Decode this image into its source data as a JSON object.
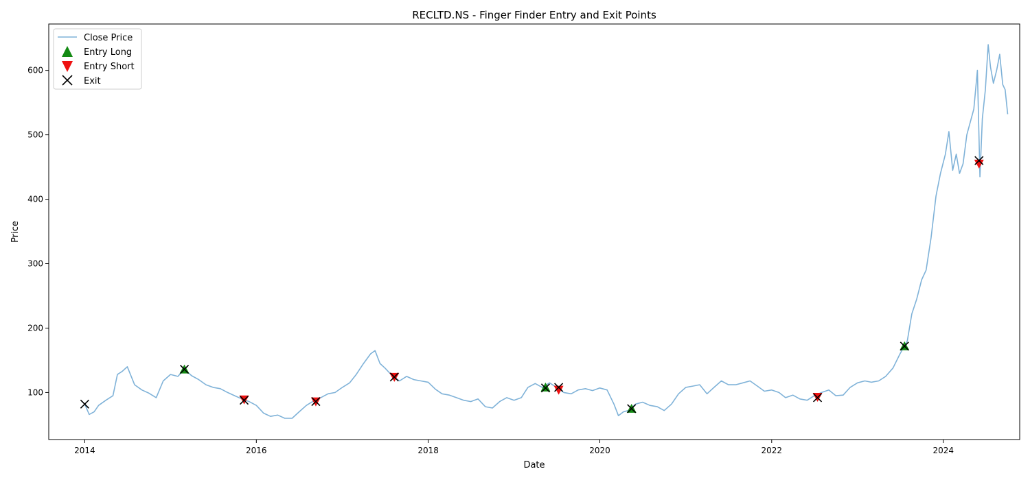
{
  "chart_data": {
    "type": "line",
    "title": "RECLTD.NS - Finger Finder Entry and Exit Points",
    "xlabel": "Date",
    "ylabel": "Price",
    "xlim": [
      "2013-08-01",
      "2024-11-21"
    ],
    "ylim": [
      27,
      672
    ],
    "x_ticks": [
      {
        "date": "2014-01-01",
        "label": "2014"
      },
      {
        "date": "2016-01-01",
        "label": "2016"
      },
      {
        "date": "2018-01-01",
        "label": "2018"
      },
      {
        "date": "2020-01-01",
        "label": "2020"
      },
      {
        "date": "2022-01-01",
        "label": "2022"
      },
      {
        "date": "2024-01-01",
        "label": "2024"
      }
    ],
    "y_ticks": [
      100,
      200,
      300,
      400,
      500,
      600
    ],
    "grid": false,
    "legend_position": "upper-left",
    "colors": {
      "close": "#7fb2d8",
      "entry_long": "#138a13",
      "entry_short": "#ee1111",
      "exit": "#000000"
    },
    "series": [
      {
        "name": "Close Price",
        "kind": "line",
        "points": [
          [
            "2014-01-01",
            82
          ],
          [
            "2014-01-20",
            66
          ],
          [
            "2014-02-10",
            70
          ],
          [
            "2014-03-01",
            80
          ],
          [
            "2014-04-01",
            88
          ],
          [
            "2014-05-01",
            95
          ],
          [
            "2014-05-20",
            128
          ],
          [
            "2014-06-10",
            133
          ],
          [
            "2014-07-01",
            140
          ],
          [
            "2014-08-01",
            112
          ],
          [
            "2014-09-01",
            104
          ],
          [
            "2014-10-01",
            99
          ],
          [
            "2014-11-01",
            92
          ],
          [
            "2014-12-01",
            118
          ],
          [
            "2015-01-01",
            128
          ],
          [
            "2015-02-01",
            125
          ],
          [
            "2015-03-01",
            136
          ],
          [
            "2015-04-01",
            126
          ],
          [
            "2015-05-01",
            120
          ],
          [
            "2015-06-01",
            112
          ],
          [
            "2015-07-01",
            108
          ],
          [
            "2015-08-01",
            106
          ],
          [
            "2015-09-01",
            100
          ],
          [
            "2015-10-01",
            95
          ],
          [
            "2015-11-01",
            90
          ],
          [
            "2015-12-01",
            86
          ],
          [
            "2016-01-01",
            80
          ],
          [
            "2016-02-01",
            68
          ],
          [
            "2016-03-01",
            63
          ],
          [
            "2016-04-01",
            65
          ],
          [
            "2016-05-01",
            60
          ],
          [
            "2016-06-01",
            60
          ],
          [
            "2016-07-01",
            70
          ],
          [
            "2016-08-01",
            80
          ],
          [
            "2016-09-01",
            87
          ],
          [
            "2016-10-01",
            92
          ],
          [
            "2016-11-01",
            98
          ],
          [
            "2016-12-01",
            100
          ],
          [
            "2017-01-01",
            108
          ],
          [
            "2017-02-01",
            115
          ],
          [
            "2017-03-01",
            128
          ],
          [
            "2017-04-01",
            145
          ],
          [
            "2017-05-01",
            160
          ],
          [
            "2017-05-20",
            165
          ],
          [
            "2017-06-10",
            145
          ],
          [
            "2017-07-01",
            138
          ],
          [
            "2017-08-01",
            126
          ],
          [
            "2017-09-01",
            118
          ],
          [
            "2017-10-01",
            125
          ],
          [
            "2017-11-01",
            120
          ],
          [
            "2017-12-01",
            118
          ],
          [
            "2018-01-01",
            116
          ],
          [
            "2018-02-01",
            105
          ],
          [
            "2018-03-01",
            98
          ],
          [
            "2018-04-01",
            96
          ],
          [
            "2018-05-01",
            92
          ],
          [
            "2018-06-01",
            88
          ],
          [
            "2018-07-01",
            86
          ],
          [
            "2018-08-01",
            90
          ],
          [
            "2018-09-01",
            78
          ],
          [
            "2018-10-01",
            76
          ],
          [
            "2018-11-01",
            86
          ],
          [
            "2018-12-01",
            92
          ],
          [
            "2019-01-01",
            88
          ],
          [
            "2019-02-01",
            92
          ],
          [
            "2019-03-01",
            108
          ],
          [
            "2019-04-01",
            114
          ],
          [
            "2019-05-01",
            108
          ],
          [
            "2019-06-01",
            115
          ],
          [
            "2019-07-01",
            108
          ],
          [
            "2019-08-01",
            100
          ],
          [
            "2019-09-01",
            98
          ],
          [
            "2019-10-01",
            104
          ],
          [
            "2019-11-01",
            106
          ],
          [
            "2019-12-01",
            103
          ],
          [
            "2020-01-01",
            107
          ],
          [
            "2020-02-01",
            104
          ],
          [
            "2020-03-01",
            82
          ],
          [
            "2020-03-20",
            64
          ],
          [
            "2020-04-10",
            70
          ],
          [
            "2020-05-01",
            72
          ],
          [
            "2020-06-01",
            82
          ],
          [
            "2020-07-01",
            85
          ],
          [
            "2020-08-01",
            80
          ],
          [
            "2020-09-01",
            78
          ],
          [
            "2020-10-01",
            72
          ],
          [
            "2020-11-01",
            82
          ],
          [
            "2020-12-01",
            98
          ],
          [
            "2021-01-01",
            108
          ],
          [
            "2021-02-01",
            110
          ],
          [
            "2021-03-01",
            112
          ],
          [
            "2021-04-01",
            98
          ],
          [
            "2021-05-01",
            108
          ],
          [
            "2021-06-01",
            118
          ],
          [
            "2021-07-01",
            112
          ],
          [
            "2021-08-01",
            112
          ],
          [
            "2021-09-01",
            115
          ],
          [
            "2021-10-01",
            118
          ],
          [
            "2021-11-01",
            110
          ],
          [
            "2021-12-01",
            102
          ],
          [
            "2022-01-01",
            104
          ],
          [
            "2022-02-01",
            100
          ],
          [
            "2022-03-01",
            92
          ],
          [
            "2022-04-01",
            96
          ],
          [
            "2022-05-01",
            90
          ],
          [
            "2022-06-01",
            88
          ],
          [
            "2022-07-01",
            95
          ],
          [
            "2022-08-01",
            100
          ],
          [
            "2022-09-01",
            104
          ],
          [
            "2022-10-01",
            95
          ],
          [
            "2022-11-01",
            96
          ],
          [
            "2022-12-01",
            108
          ],
          [
            "2023-01-01",
            115
          ],
          [
            "2023-02-01",
            118
          ],
          [
            "2023-03-01",
            116
          ],
          [
            "2023-04-01",
            118
          ],
          [
            "2023-05-01",
            125
          ],
          [
            "2023-06-01",
            138
          ],
          [
            "2023-07-01",
            160
          ],
          [
            "2023-08-01",
            180
          ],
          [
            "2023-08-20",
            222
          ],
          [
            "2023-09-10",
            245
          ],
          [
            "2023-10-01",
            275
          ],
          [
            "2023-10-20",
            290
          ],
          [
            "2023-11-10",
            340
          ],
          [
            "2023-12-01",
            405
          ],
          [
            "2023-12-20",
            440
          ],
          [
            "2024-01-10",
            470
          ],
          [
            "2024-01-25",
            505
          ],
          [
            "2024-02-10",
            445
          ],
          [
            "2024-02-25",
            470
          ],
          [
            "2024-03-10",
            440
          ],
          [
            "2024-03-25",
            455
          ],
          [
            "2024-04-10",
            500
          ],
          [
            "2024-04-25",
            520
          ],
          [
            "2024-05-10",
            540
          ],
          [
            "2024-05-25",
            600
          ],
          [
            "2024-06-05",
            435
          ],
          [
            "2024-06-15",
            525
          ],
          [
            "2024-06-28",
            570
          ],
          [
            "2024-07-10",
            640
          ],
          [
            "2024-07-20",
            605
          ],
          [
            "2024-08-01",
            580
          ],
          [
            "2024-08-15",
            600
          ],
          [
            "2024-08-28",
            625
          ],
          [
            "2024-09-10",
            578
          ],
          [
            "2024-09-20",
            570
          ],
          [
            "2024-10-01",
            532
          ]
        ]
      },
      {
        "name": "Entry Long",
        "kind": "marker",
        "marker": "triangle-up",
        "points": [
          [
            "2015-03-01",
            136
          ],
          [
            "2019-05-15",
            108
          ],
          [
            "2020-05-15",
            75
          ],
          [
            "2023-07-20",
            172
          ]
        ]
      },
      {
        "name": "Entry Short",
        "kind": "marker",
        "marker": "triangle-down",
        "points": [
          [
            "2015-11-10",
            89
          ],
          [
            "2016-09-10",
            86
          ],
          [
            "2017-08-10",
            124
          ],
          [
            "2019-07-10",
            104
          ],
          [
            "2022-07-15",
            93
          ],
          [
            "2024-06-01",
            455
          ]
        ]
      },
      {
        "name": "Exit",
        "kind": "marker",
        "marker": "x",
        "points": [
          [
            "2014-01-01",
            82
          ],
          [
            "2015-03-01",
            136
          ],
          [
            "2015-11-10",
            88
          ],
          [
            "2016-09-10",
            86
          ],
          [
            "2017-08-10",
            124
          ],
          [
            "2019-05-15",
            107
          ],
          [
            "2019-07-10",
            108
          ],
          [
            "2020-05-15",
            75
          ],
          [
            "2022-07-15",
            92
          ],
          [
            "2023-07-20",
            172
          ],
          [
            "2024-06-01",
            460
          ]
        ]
      }
    ]
  }
}
